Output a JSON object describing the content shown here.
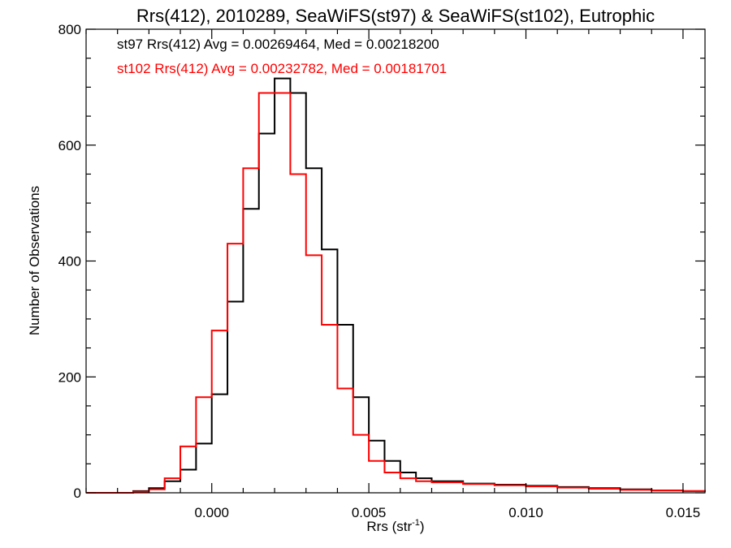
{
  "chart_data": {
    "type": "histogram-step",
    "title": "Rrs(412), 2010289, SeaWiFS(st97) & SeaWiFS(st102), Eutrophic",
    "xlabel": "Rrs (str",
    "xlabel_superscript": "-1",
    "xlabel_suffix": ")",
    "ylabel": "Number of Observations",
    "xlim": [
      -0.004,
      0.0157
    ],
    "ylim": [
      0,
      800
    ],
    "x_ticks": [
      {
        "value": 0.0,
        "label": "0.000"
      },
      {
        "value": 0.005,
        "label": "0.005"
      },
      {
        "value": 0.01,
        "label": "0.010"
      },
      {
        "value": 0.015,
        "label": "0.015"
      }
    ],
    "y_ticks": [
      {
        "value": 0,
        "label": "0"
      },
      {
        "value": 200,
        "label": "200"
      },
      {
        "value": 400,
        "label": "400"
      },
      {
        "value": 600,
        "label": "600"
      },
      {
        "value": 800,
        "label": "800"
      }
    ],
    "grid": false,
    "annotations": [
      {
        "text": "st97 Rrs(412) Avg = 0.00269464, Med = 0.00218200",
        "color": "#000000"
      },
      {
        "text": "st102 Rrs(412) Avg = 0.00232782, Med = 0.00181701",
        "color": "#ff0000"
      }
    ],
    "series": [
      {
        "color": "#000000",
        "x": [
          -0.004,
          -0.003,
          -0.0025,
          -0.002,
          -0.0015,
          -0.001,
          -0.0005,
          0.0,
          0.0005,
          0.001,
          0.0015,
          0.002,
          0.0025,
          0.003,
          0.0035,
          0.004,
          0.0045,
          0.005,
          0.0055,
          0.006,
          0.0065,
          0.007,
          0.008,
          0.009,
          0.01,
          0.011,
          0.012,
          0.013,
          0.014,
          0.015,
          0.0157
        ],
        "values": [
          0,
          0,
          3,
          8,
          20,
          40,
          85,
          170,
          330,
          490,
          620,
          715,
          690,
          560,
          420,
          290,
          165,
          90,
          55,
          35,
          25,
          20,
          16,
          14,
          12,
          10,
          8,
          6,
          4,
          3,
          2
        ]
      },
      {
        "color": "#ff0000",
        "x": [
          -0.004,
          -0.003,
          -0.0025,
          -0.002,
          -0.0015,
          -0.001,
          -0.0005,
          0.0,
          0.0005,
          0.001,
          0.0015,
          0.002,
          0.0025,
          0.003,
          0.0035,
          0.004,
          0.0045,
          0.005,
          0.0055,
          0.006,
          0.0065,
          0.007,
          0.008,
          0.009,
          0.01,
          0.011,
          0.012,
          0.013,
          0.014,
          0.015,
          0.0157
        ],
        "values": [
          0,
          0,
          2,
          6,
          25,
          80,
          165,
          280,
          430,
          560,
          690,
          690,
          550,
          410,
          290,
          180,
          100,
          55,
          35,
          25,
          20,
          18,
          15,
          13,
          11,
          9,
          7,
          5,
          4,
          3,
          2
        ]
      }
    ]
  }
}
